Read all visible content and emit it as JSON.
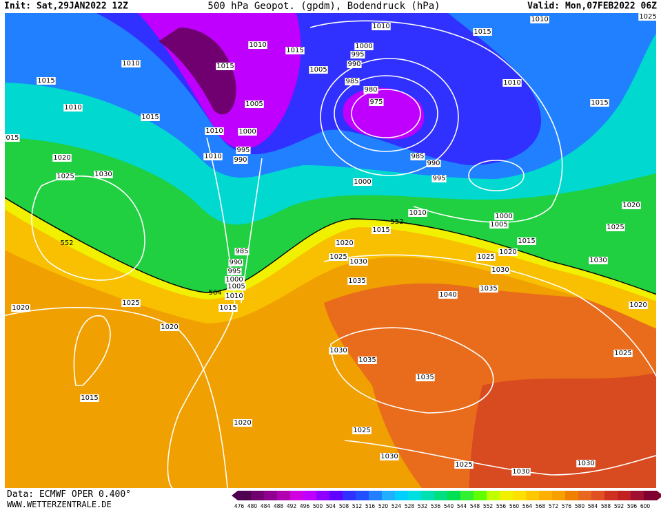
{
  "header": {
    "init": "Init: Sat,29JAN2022 12Z",
    "title": "500 hPa Geopot. (gpdm), Bodendruck (hPa)",
    "valid": "Valid: Mon,07FEB2022 06Z"
  },
  "footer": {
    "data": "Data: ECMWF OPER 0.400°",
    "site": "WWW.WETTERZENTRALE.DE"
  },
  "isobar_labels": [
    "1010",
    "1015",
    "1010",
    "1025",
    "1010",
    "1015",
    "1010",
    "1015",
    "1000",
    "995",
    "990",
    "1005",
    "985",
    "980",
    "975",
    "1015",
    "1010",
    "1005",
    "1015",
    "1010",
    "1015",
    "1010",
    "1000",
    "995",
    "990",
    "1010",
    "1020",
    "985",
    "990",
    "1025",
    "1030",
    "995",
    "1000",
    "1010",
    "1000",
    "1005",
    "1020",
    "1015",
    "1025",
    "1020",
    "1015",
    "985",
    "990",
    "1025",
    "1030",
    "1025",
    "1020",
    "1030",
    "995",
    "1030",
    "1035",
    "1000",
    "1005",
    "1035",
    "1010",
    "1040",
    "1025",
    "1015",
    "1020",
    "1020",
    "1020",
    "1030",
    "1035",
    "1025",
    "1035",
    "1015",
    "1020",
    "1025",
    "1030",
    "1025",
    "1030",
    "1030",
    "015"
  ],
  "geopotential_labels": [
    "552",
    "564",
    "552"
  ],
  "colorbar": {
    "levels": [
      476,
      480,
      484,
      488,
      492,
      496,
      500,
      504,
      508,
      512,
      516,
      520,
      524,
      528,
      532,
      536,
      540,
      544,
      548,
      552,
      556,
      560,
      564,
      568,
      572,
      576,
      580,
      584,
      588,
      592,
      596,
      600
    ],
    "colors": [
      "#500050",
      "#700070",
      "#900090",
      "#b000b0",
      "#d000e0",
      "#c000ff",
      "#9000ff",
      "#6000ff",
      "#3030ff",
      "#2050ff",
      "#2080ff",
      "#20b0ff",
      "#00d0ff",
      "#00e0e0",
      "#00e0b0",
      "#00e080",
      "#00e050",
      "#30f030",
      "#60ff00",
      "#c0ff00",
      "#f0f000",
      "#ffe000",
      "#ffc800",
      "#ffb000",
      "#f8a000",
      "#f08000",
      "#e86820",
      "#e05020",
      "#d03020",
      "#c02020",
      "#a01030",
      "#800030"
    ]
  }
}
